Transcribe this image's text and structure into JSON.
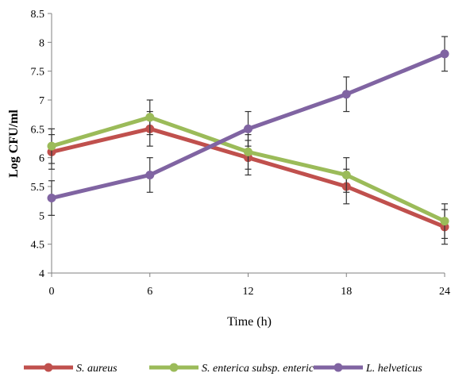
{
  "chart_data": {
    "type": "line",
    "title": "",
    "xlabel": "Time (h)",
    "ylabel": "Log CFU/ml",
    "x": [
      0,
      6,
      12,
      18,
      24
    ],
    "xlim": [
      0,
      24
    ],
    "ylim": [
      4,
      8.5
    ],
    "x_ticks": [
      "0",
      "6",
      "12",
      "18",
      "24"
    ],
    "y_ticks": [
      "4",
      "4.5",
      "5",
      "5.5",
      "6",
      "6.5",
      "7",
      "7.5",
      "8",
      "8.5"
    ],
    "grid": false,
    "legend_position": "bottom",
    "error_bars": true,
    "series": [
      {
        "name": "S. aureus",
        "color": "#C0504D",
        "values": [
          6.1,
          6.5,
          6.0,
          5.5,
          4.8
        ],
        "errors": [
          0.3,
          0.3,
          0.3,
          0.3,
          0.3
        ]
      },
      {
        "name": "S. enterica subsp. enteric",
        "color": "#9BBB59",
        "values": [
          6.2,
          6.7,
          6.1,
          5.7,
          4.9
        ],
        "errors": [
          0.3,
          0.3,
          0.3,
          0.3,
          0.3
        ]
      },
      {
        "name": "L. helveticus",
        "color": "#8064A2",
        "values": [
          5.3,
          5.7,
          6.5,
          7.1,
          7.8
        ],
        "errors": [
          0.3,
          0.3,
          0.3,
          0.3,
          0.3
        ]
      }
    ]
  }
}
